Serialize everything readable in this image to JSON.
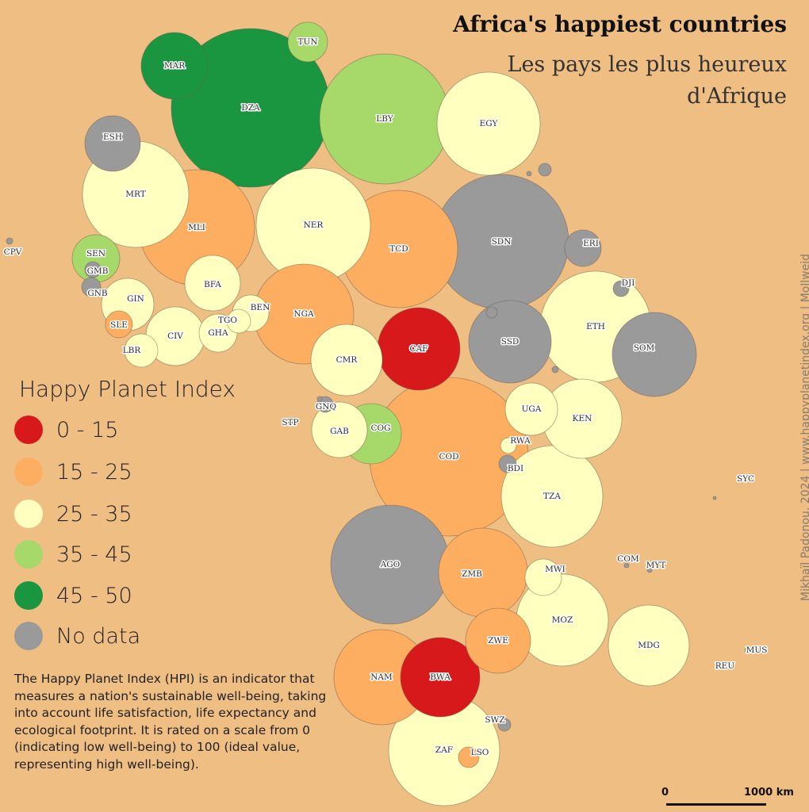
{
  "header": {
    "title": "Africa's happiest countries",
    "subtitle": "Les pays les plus heureux d'Afrique",
    "credit": "Mikhaïl Padonou, 2024 | www.happyplanetindex.org | Mollweid"
  },
  "legend": {
    "title": "Happy Planet Index",
    "items": [
      {
        "key": "red",
        "label": "0 - 15",
        "color": "#d7191c"
      },
      {
        "key": "orange",
        "label": "15 - 25",
        "color": "#fdae61"
      },
      {
        "key": "cream",
        "label": "25 - 35",
        "color": "#ffffbf"
      },
      {
        "key": "lightgreen",
        "label": "35 - 45",
        "color": "#a6d96a"
      },
      {
        "key": "green",
        "label": "45 - 50",
        "color": "#1a9641"
      },
      {
        "key": "grey",
        "label": "No data",
        "color": "#9a9a9a"
      }
    ]
  },
  "description": "The Happy Planet Index (HPI) is an indicator that measures a nation's sustainable well-being, taking into account life satisfaction, life expectancy and ecological footprint. It is rated on a scale from 0 (indicating low well-being) to 100 (ideal value, representing high well-being).",
  "scale": {
    "start": "0",
    "end": "1000 km"
  },
  "countries": [
    {
      "code": "DZA",
      "category": "green"
    },
    {
      "code": "MAR",
      "category": "green"
    },
    {
      "code": "TUN",
      "category": "lightgreen"
    },
    {
      "code": "LBY",
      "category": "lightgreen"
    },
    {
      "code": "EGY",
      "category": "cream"
    },
    {
      "code": "ESH",
      "category": "grey"
    },
    {
      "code": "MRT",
      "category": "cream"
    },
    {
      "code": "MLI",
      "category": "orange"
    },
    {
      "code": "NER",
      "category": "cream"
    },
    {
      "code": "TCD",
      "category": "orange"
    },
    {
      "code": "SDN",
      "category": "grey"
    },
    {
      "code": "ERI",
      "category": "grey"
    },
    {
      "code": "CPV",
      "category": "grey"
    },
    {
      "code": "SEN",
      "category": "lightgreen"
    },
    {
      "code": "GMB",
      "category": "grey"
    },
    {
      "code": "GNB",
      "category": "grey"
    },
    {
      "code": "GIN",
      "category": "cream"
    },
    {
      "code": "SLE",
      "category": "orange"
    },
    {
      "code": "LBR",
      "category": "cream"
    },
    {
      "code": "CIV",
      "category": "cream"
    },
    {
      "code": "BFA",
      "category": "cream"
    },
    {
      "code": "GHA",
      "category": "cream"
    },
    {
      "code": "TGO",
      "category": "cream"
    },
    {
      "code": "BEN",
      "category": "cream"
    },
    {
      "code": "NGA",
      "category": "orange"
    },
    {
      "code": "CMR",
      "category": "cream"
    },
    {
      "code": "CAF",
      "category": "red"
    },
    {
      "code": "SSD",
      "category": "grey"
    },
    {
      "code": "ETH",
      "category": "cream"
    },
    {
      "code": "DJI",
      "category": "grey"
    },
    {
      "code": "SOM",
      "category": "grey"
    },
    {
      "code": "STP",
      "category": "grey"
    },
    {
      "code": "GNQ",
      "category": "grey"
    },
    {
      "code": "GAB",
      "category": "cream"
    },
    {
      "code": "COG",
      "category": "lightgreen"
    },
    {
      "code": "COD",
      "category": "orange"
    },
    {
      "code": "UGA",
      "category": "cream"
    },
    {
      "code": "KEN",
      "category": "cream"
    },
    {
      "code": "RWA",
      "category": "cream"
    },
    {
      "code": "BDI",
      "category": "grey"
    },
    {
      "code": "TZA",
      "category": "cream"
    },
    {
      "code": "SYC",
      "category": "grey"
    },
    {
      "code": "AGO",
      "category": "grey"
    },
    {
      "code": "ZMB",
      "category": "orange"
    },
    {
      "code": "MWI",
      "category": "cream"
    },
    {
      "code": "MOZ",
      "category": "cream"
    },
    {
      "code": "COM",
      "category": "grey"
    },
    {
      "code": "MYT",
      "category": "grey"
    },
    {
      "code": "MDG",
      "category": "cream"
    },
    {
      "code": "ZWE",
      "category": "orange"
    },
    {
      "code": "NAM",
      "category": "orange"
    },
    {
      "code": "BWA",
      "category": "red"
    },
    {
      "code": "ZAF",
      "category": "cream"
    },
    {
      "code": "LSO",
      "category": "orange"
    },
    {
      "code": "SWZ",
      "category": "grey"
    },
    {
      "code": "MUS",
      "category": "lightgreen"
    },
    {
      "code": "REU",
      "category": "grey"
    }
  ]
}
